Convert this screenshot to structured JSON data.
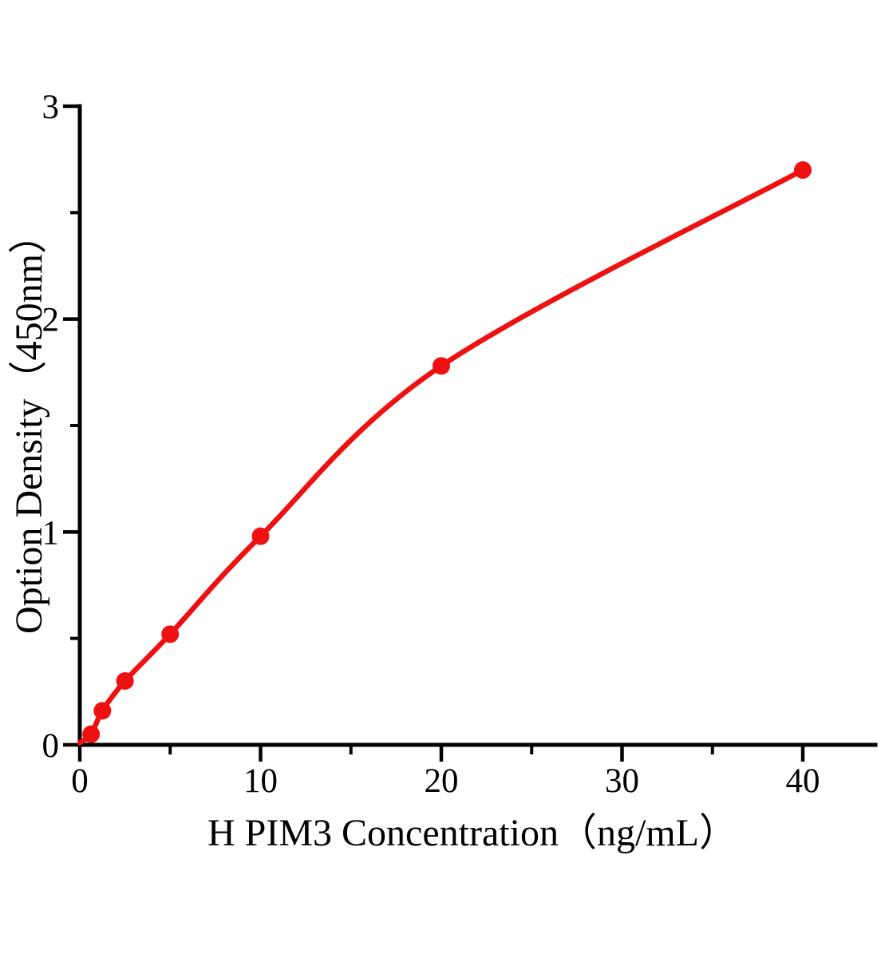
{
  "chart_data": {
    "type": "scatter",
    "title": "",
    "xlabel": "H PIM3 Concentration（ng/mL）",
    "ylabel": "Option Density（450nm）",
    "x": [
      0.625,
      1.25,
      2.5,
      5,
      10,
      20,
      40
    ],
    "y": [
      0.05,
      0.16,
      0.3,
      0.52,
      0.98,
      1.78,
      2.7
    ],
    "curve_start": {
      "x": 0,
      "y": 0.01
    },
    "xlim": [
      0,
      44
    ],
    "ylim": [
      0,
      3
    ],
    "x_major_ticks": [
      0,
      10,
      20,
      30,
      40
    ],
    "x_minor_ticks": [
      5,
      15,
      25,
      35
    ],
    "y_major_ticks": [
      0,
      1,
      2,
      3
    ],
    "y_minor_ticks": [
      0.5,
      1.5,
      2.5
    ],
    "x_tick_labels": [
      "0",
      "10",
      "20",
      "30",
      "40"
    ],
    "y_tick_labels": [
      "0",
      "1",
      "2",
      "3"
    ],
    "line_color": "#ee1111",
    "marker_color": "#ee1111",
    "axis_color": "#000000",
    "background_color": "#ffffff",
    "grid": false,
    "legend": null
  }
}
